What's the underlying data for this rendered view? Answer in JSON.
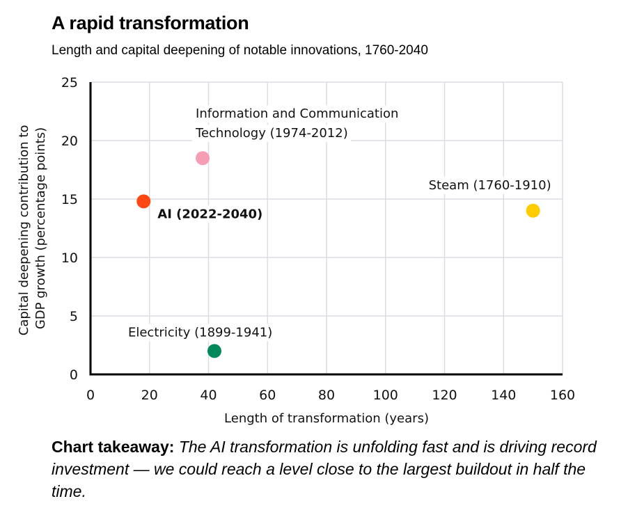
{
  "header": {
    "title": "A rapid transformation",
    "subtitle": "Length and capital deepening of notable innovations, 1760-2040"
  },
  "chart_data": {
    "type": "scatter",
    "title": "A rapid transformation",
    "subtitle": "Length and capital deepening of notable innovations, 1760-2040",
    "xlabel": "Length of transformation (years)",
    "ylabel_lines": [
      "Capital deepening contribution to",
      "GDP growth (percentage points)"
    ],
    "xlim": [
      0,
      160
    ],
    "ylim": [
      0,
      25
    ],
    "xticks": [
      0,
      20,
      40,
      60,
      80,
      100,
      120,
      140,
      160
    ],
    "yticks": [
      0,
      5,
      10,
      15,
      20,
      25
    ],
    "grid": true,
    "points": [
      {
        "name": "AI (2022-2040)",
        "label_lines": [
          "AI (2022-2040)"
        ],
        "x": 18,
        "y": 14.8,
        "color": "#ff4713",
        "bold": true
      },
      {
        "name": "Information and Communication Technology (1974-2012)",
        "label_lines": [
          "Information and Communication",
          "Technology (1974-2012)"
        ],
        "x": 38,
        "y": 18.5,
        "color": "#f79cb5",
        "bold": false
      },
      {
        "name": "Steam (1760-1910)",
        "label_lines": [
          "Steam (1760-1910)"
        ],
        "x": 150,
        "y": 14,
        "color": "#ffcc00",
        "bold": false
      },
      {
        "name": "Electricity (1899-1941)",
        "label_lines": [
          "Electricity (1899-1941)"
        ],
        "x": 42,
        "y": 2,
        "color": "#00875a",
        "bold": false
      }
    ]
  },
  "takeaway": {
    "lead": "Chart takeaway:",
    "text": "The AI transformation is unfolding fast and is driving record investment — we could reach a level close to the largest buildout in half the time."
  }
}
